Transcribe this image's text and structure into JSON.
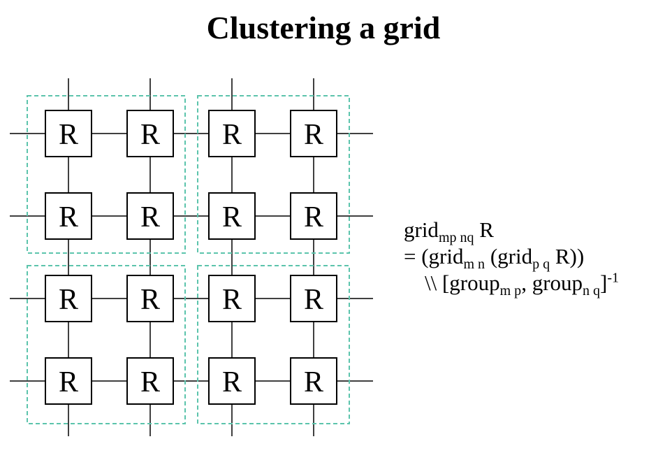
{
  "title": "Clustering a grid",
  "diagram": {
    "node_label": "R",
    "rows": 4,
    "cols": 4,
    "cluster_rows": 2,
    "cluster_cols": 2,
    "colors": {
      "line": "#000000",
      "node_border": "#000000",
      "node_fill": "#ffffff",
      "cluster_border": "#5cc4ac"
    }
  },
  "formula": {
    "line1": {
      "t1": "grid",
      "sub1": "mp nq",
      "t2": " R"
    },
    "line2": {
      "t1": "= (grid",
      "sub1": "m n",
      "t2": " (grid",
      "sub2": "p q",
      "t3": " R))"
    },
    "line3": {
      "t1": "\\\\ [group",
      "sub1": "m p",
      "t2": ", group",
      "sub2": "n q",
      "t3": "]",
      "sup1": "-1"
    }
  }
}
